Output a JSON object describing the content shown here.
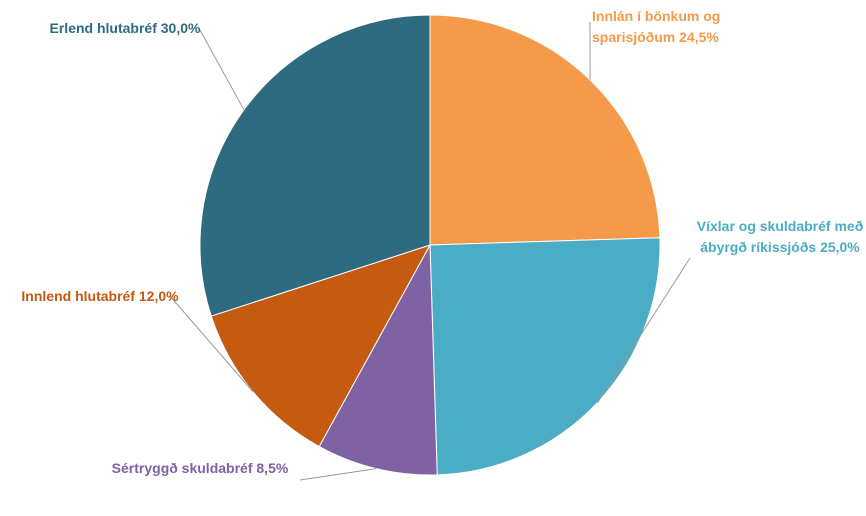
{
  "chart_data": {
    "type": "pie",
    "categories": [
      "Innlán í bönkum og sparisjóðum",
      "Víxlar og skuldabréf með ábyrgð ríkissjóðs",
      "Sértryggð skuldabréf",
      "Innlend hlutabréf",
      "Erlend hlutabréf"
    ],
    "values": [
      24.5,
      25.0,
      8.5,
      12.0,
      30.0
    ],
    "value_labels": [
      "24,5%",
      "25,0%",
      "8,5%",
      "12,0%",
      "30,0%"
    ],
    "colors": [
      "#F59A4A",
      "#4BACC6",
      "#7F62A3",
      "#C55A11",
      "#2E6B80"
    ]
  }
}
